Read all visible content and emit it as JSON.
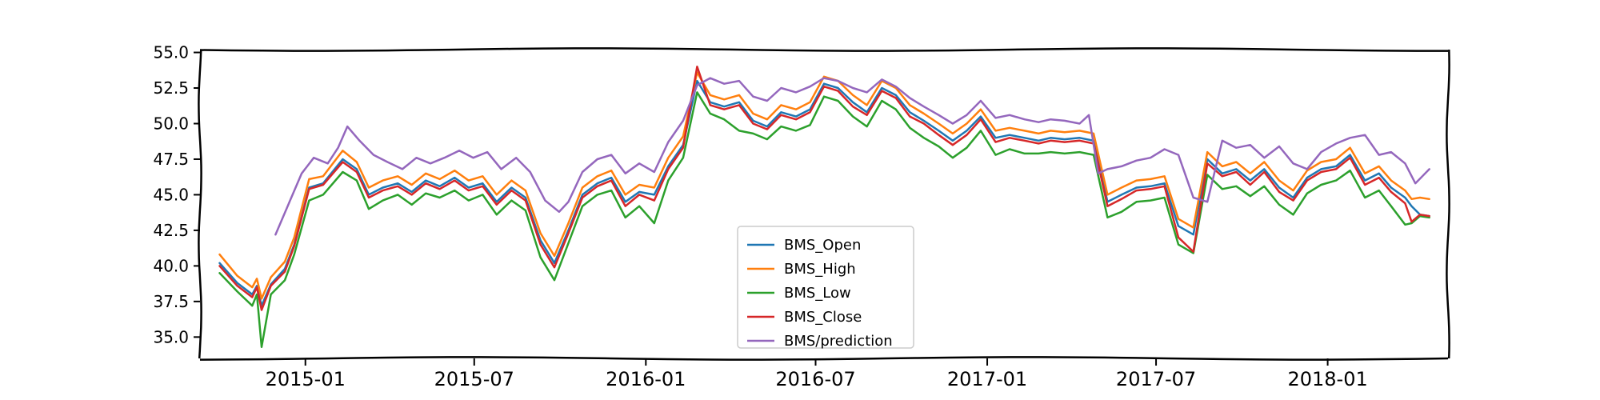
{
  "chart_data": {
    "type": "line",
    "title": "",
    "xlabel": "",
    "ylabel": "",
    "xlim": [
      "2014-09-10",
      "2018-05-10"
    ],
    "ylim": [
      33.5,
      55.2
    ],
    "y_ticks": [
      35.0,
      37.5,
      40.0,
      42.5,
      45.0,
      47.5,
      50.0,
      52.5,
      55.0
    ],
    "y_tick_labels": [
      "35.0",
      "37.5",
      "40.0",
      "42.5",
      "45.0",
      "47.5",
      "50.0",
      "52.5",
      "55.0"
    ],
    "x_ticks": [
      "2015-01-01",
      "2015-07-01",
      "2016-01-01",
      "2016-07-01",
      "2017-01-01",
      "2017-07-01",
      "2018-01-01"
    ],
    "x_tick_labels": [
      "2015-01",
      "2015-07",
      "2016-01",
      "2016-07",
      "2017-01",
      "2017-07",
      "2018-01"
    ],
    "grid": false,
    "legend": "lower-center",
    "dates": [
      "2014-10-01",
      "2014-10-20",
      "2014-11-05",
      "2014-11-10",
      "2014-11-15",
      "2014-11-25",
      "2014-12-10",
      "2014-12-20",
      "2015-01-05",
      "2015-01-20",
      "2015-02-10",
      "2015-02-25",
      "2015-03-10",
      "2015-03-25",
      "2015-04-10",
      "2015-04-25",
      "2015-05-10",
      "2015-05-25",
      "2015-06-10",
      "2015-06-25",
      "2015-07-10",
      "2015-07-25",
      "2015-08-10",
      "2015-08-25",
      "2015-09-10",
      "2015-09-25",
      "2015-10-10",
      "2015-10-25",
      "2015-11-10",
      "2015-11-25",
      "2015-12-10",
      "2015-12-25",
      "2016-01-10",
      "2016-01-25",
      "2016-02-10",
      "2016-02-25",
      "2016-03-10",
      "2016-03-25",
      "2016-04-10",
      "2016-04-25",
      "2016-05-10",
      "2016-05-25",
      "2016-06-10",
      "2016-06-25",
      "2016-07-10",
      "2016-07-25",
      "2016-08-10",
      "2016-08-25",
      "2016-09-10",
      "2016-09-25",
      "2016-10-10",
      "2016-10-25",
      "2016-11-10",
      "2016-11-25",
      "2016-12-10",
      "2016-12-25",
      "2017-01-10",
      "2017-01-25",
      "2017-02-10",
      "2017-02-25",
      "2017-03-10",
      "2017-03-25",
      "2017-04-10",
      "2017-04-25",
      "2017-05-10",
      "2017-05-25",
      "2017-06-10",
      "2017-06-25",
      "2017-07-10",
      "2017-07-25",
      "2017-08-10",
      "2017-08-25",
      "2017-09-10",
      "2017-09-25",
      "2017-10-10",
      "2017-10-25",
      "2017-11-10",
      "2017-11-25",
      "2017-12-10",
      "2017-12-25",
      "2018-01-10",
      "2018-01-25",
      "2018-02-10",
      "2018-02-25",
      "2018-03-10",
      "2018-03-25",
      "2018-04-01",
      "2018-04-10",
      "2018-04-20"
    ],
    "series": [
      {
        "name": "BMS_Open",
        "color": "#1f77b4",
        "values": [
          40.2,
          38.8,
          38.0,
          38.6,
          37.2,
          38.7,
          39.8,
          41.5,
          45.5,
          45.8,
          47.5,
          46.8,
          45.0,
          45.5,
          45.8,
          45.2,
          46.0,
          45.6,
          46.2,
          45.5,
          45.8,
          44.5,
          45.5,
          44.8,
          41.8,
          40.2,
          42.5,
          45.0,
          45.8,
          46.2,
          44.5,
          45.2,
          45.0,
          47.0,
          48.5,
          53.0,
          51.5,
          51.2,
          51.5,
          50.2,
          49.8,
          50.8,
          50.5,
          51.0,
          52.8,
          52.5,
          51.5,
          50.8,
          52.5,
          52.0,
          50.8,
          50.2,
          49.5,
          48.8,
          49.5,
          50.5,
          49.0,
          49.2,
          49.0,
          48.8,
          49.0,
          48.9,
          49.0,
          48.8,
          44.5,
          45.0,
          45.5,
          45.6,
          45.8,
          42.8,
          42.2,
          47.5,
          46.5,
          46.8,
          46.0,
          46.8,
          45.5,
          44.8,
          46.2,
          46.8,
          47.0,
          47.8,
          46.0,
          46.5,
          45.5,
          44.8,
          44.2,
          43.6,
          43.5
        ]
      },
      {
        "name": "BMS_High",
        "color": "#ff7f0e",
        "values": [
          40.8,
          39.3,
          38.5,
          39.1,
          37.7,
          39.2,
          40.3,
          42.0,
          46.1,
          46.3,
          48.1,
          47.3,
          45.5,
          46.0,
          46.3,
          45.7,
          46.5,
          46.1,
          46.7,
          46.0,
          46.3,
          45.0,
          46.0,
          45.3,
          42.3,
          40.7,
          43.0,
          45.5,
          46.3,
          46.7,
          45.0,
          45.7,
          45.5,
          47.6,
          49.1,
          53.6,
          52.0,
          51.7,
          52.0,
          50.7,
          50.3,
          51.3,
          51.0,
          51.5,
          53.3,
          53.0,
          52.0,
          51.3,
          53.0,
          52.5,
          51.3,
          50.7,
          50.0,
          49.3,
          50.0,
          51.0,
          49.5,
          49.7,
          49.5,
          49.3,
          49.5,
          49.4,
          49.5,
          49.3,
          45.0,
          45.5,
          46.0,
          46.1,
          46.3,
          43.3,
          42.7,
          48.0,
          47.0,
          47.3,
          46.5,
          47.3,
          46.0,
          45.3,
          46.7,
          47.3,
          47.5,
          48.3,
          46.5,
          47.0,
          46.0,
          45.3,
          44.7,
          44.8,
          44.7
        ]
      },
      {
        "name": "BMS_Low",
        "color": "#2ca02c",
        "values": [
          39.5,
          38.2,
          37.2,
          38.0,
          34.3,
          38.0,
          39.0,
          40.8,
          44.6,
          45.0,
          46.6,
          46.0,
          44.0,
          44.6,
          45.0,
          44.3,
          45.1,
          44.8,
          45.3,
          44.6,
          45.0,
          43.6,
          44.6,
          43.9,
          40.6,
          39.0,
          41.6,
          44.2,
          45.0,
          45.3,
          43.4,
          44.2,
          43.0,
          46.0,
          47.6,
          52.2,
          50.7,
          50.3,
          49.5,
          49.3,
          48.9,
          49.8,
          49.5,
          49.9,
          51.9,
          51.6,
          50.5,
          49.8,
          51.6,
          51.0,
          49.7,
          49.0,
          48.4,
          47.6,
          48.3,
          49.5,
          47.8,
          48.2,
          47.9,
          47.9,
          48.0,
          47.9,
          48.0,
          47.8,
          43.4,
          43.8,
          44.5,
          44.6,
          44.8,
          41.5,
          40.9,
          46.4,
          45.4,
          45.6,
          44.9,
          45.6,
          44.3,
          43.6,
          45.1,
          45.7,
          46.0,
          46.7,
          44.8,
          45.3,
          44.2,
          42.9,
          43.0,
          43.5,
          43.4
        ]
      },
      {
        "name": "BMS_Close",
        "color": "#d62728",
        "values": [
          40.0,
          38.6,
          37.8,
          38.5,
          36.9,
          38.6,
          39.6,
          41.4,
          45.4,
          45.7,
          47.3,
          46.6,
          44.8,
          45.3,
          45.6,
          45.0,
          45.8,
          45.4,
          46.0,
          45.3,
          45.6,
          44.3,
          45.3,
          44.6,
          41.5,
          39.9,
          42.3,
          44.8,
          45.6,
          46.0,
          44.2,
          45.0,
          44.6,
          46.8,
          48.3,
          54.0,
          51.3,
          51.0,
          51.3,
          50.0,
          49.6,
          50.6,
          50.3,
          50.8,
          52.6,
          52.3,
          51.2,
          50.6,
          52.3,
          51.8,
          50.5,
          50.0,
          49.2,
          48.5,
          49.2,
          50.3,
          48.7,
          49.0,
          48.8,
          48.6,
          48.8,
          48.7,
          48.8,
          48.6,
          44.2,
          44.7,
          45.3,
          45.4,
          45.6,
          42.0,
          41.0,
          47.2,
          46.3,
          46.6,
          45.7,
          46.6,
          45.2,
          44.6,
          46.0,
          46.6,
          46.8,
          47.6,
          45.7,
          46.2,
          45.2,
          44.4,
          43.1,
          43.6,
          43.5
        ]
      },
      {
        "name": "BMS/prediction",
        "color": "#9467bd",
        "values": [
          null,
          null,
          null,
          null,
          null,
          null,
          null,
          null,
          null,
          null,
          null,
          null,
          null,
          null,
          null,
          null,
          null,
          null,
          null,
          null,
          null,
          null,
          null,
          null,
          null,
          null,
          null,
          null,
          null,
          null,
          null,
          null,
          null,
          null,
          null,
          null,
          null,
          null,
          null,
          null,
          null,
          null,
          null,
          null,
          null,
          null,
          null,
          null,
          null,
          null,
          null,
          null,
          null,
          null,
          null,
          null,
          null,
          null,
          null,
          null,
          null,
          null,
          null,
          null,
          null,
          null,
          null,
          null,
          null,
          null,
          null,
          null,
          null,
          null,
          null,
          null,
          null,
          null,
          null,
          null,
          null,
          null,
          null,
          null,
          null,
          null,
          null,
          null,
          null
        ]
      }
    ],
    "prediction_dates": [
      "2014-11-30",
      "2014-12-15",
      "2014-12-28",
      "2015-01-10",
      "2015-01-25",
      "2015-02-05",
      "2015-02-15",
      "2015-02-28",
      "2015-03-15",
      "2015-03-30",
      "2015-04-15",
      "2015-04-30",
      "2015-05-15",
      "2015-05-30",
      "2015-06-15",
      "2015-06-30",
      "2015-07-15",
      "2015-07-30",
      "2015-08-15",
      "2015-08-30",
      "2015-09-15",
      "2015-09-30",
      "2015-10-10",
      "2015-10-25",
      "2015-11-10",
      "2015-11-25",
      "2015-12-10",
      "2015-12-25",
      "2016-01-10",
      "2016-01-25",
      "2016-02-10",
      "2016-02-25",
      "2016-03-10",
      "2016-03-25",
      "2016-04-10",
      "2016-04-25",
      "2016-05-10",
      "2016-05-25",
      "2016-06-10",
      "2016-06-25",
      "2016-07-10",
      "2016-07-25",
      "2016-08-10",
      "2016-08-25",
      "2016-09-10",
      "2016-09-25",
      "2016-10-10",
      "2016-10-25",
      "2016-11-10",
      "2016-11-25",
      "2016-12-10",
      "2016-12-25",
      "2017-01-10",
      "2017-01-25",
      "2017-02-10",
      "2017-02-25",
      "2017-03-10",
      "2017-03-25",
      "2017-04-10",
      "2017-04-20",
      "2017-04-30",
      "2017-05-10",
      "2017-05-25",
      "2017-06-10",
      "2017-06-25",
      "2017-07-10",
      "2017-07-25",
      "2017-08-10",
      "2017-08-25",
      "2017-09-10",
      "2017-09-25",
      "2017-10-10",
      "2017-10-25",
      "2017-11-10",
      "2017-11-25",
      "2017-12-10",
      "2017-12-25",
      "2018-01-10",
      "2018-01-25",
      "2018-02-10",
      "2018-02-25",
      "2018-03-10",
      "2018-03-25",
      "2018-04-05",
      "2018-04-20"
    ],
    "prediction_values": [
      42.2,
      44.5,
      46.5,
      47.6,
      47.2,
      48.3,
      49.8,
      48.8,
      47.8,
      47.3,
      46.8,
      47.6,
      47.2,
      47.6,
      48.1,
      47.6,
      48.0,
      46.8,
      47.6,
      46.6,
      44.6,
      43.8,
      44.5,
      46.6,
      47.5,
      47.8,
      46.5,
      47.2,
      46.6,
      48.7,
      50.2,
      52.7,
      53.2,
      52.8,
      53.0,
      51.9,
      51.6,
      52.5,
      52.2,
      52.6,
      53.2,
      53.0,
      52.5,
      52.2,
      53.1,
      52.6,
      51.8,
      51.2,
      50.6,
      50.0,
      50.6,
      51.6,
      50.4,
      50.6,
      50.3,
      50.1,
      50.3,
      50.2,
      50.0,
      50.6,
      46.5,
      46.8,
      47.0,
      47.4,
      47.6,
      48.2,
      47.8,
      44.8,
      44.5,
      48.8,
      48.3,
      48.5,
      47.6,
      48.4,
      47.2,
      46.8,
      48.0,
      48.6,
      49.0,
      49.2,
      47.8,
      48.0,
      47.2,
      45.8,
      46.8
    ]
  }
}
